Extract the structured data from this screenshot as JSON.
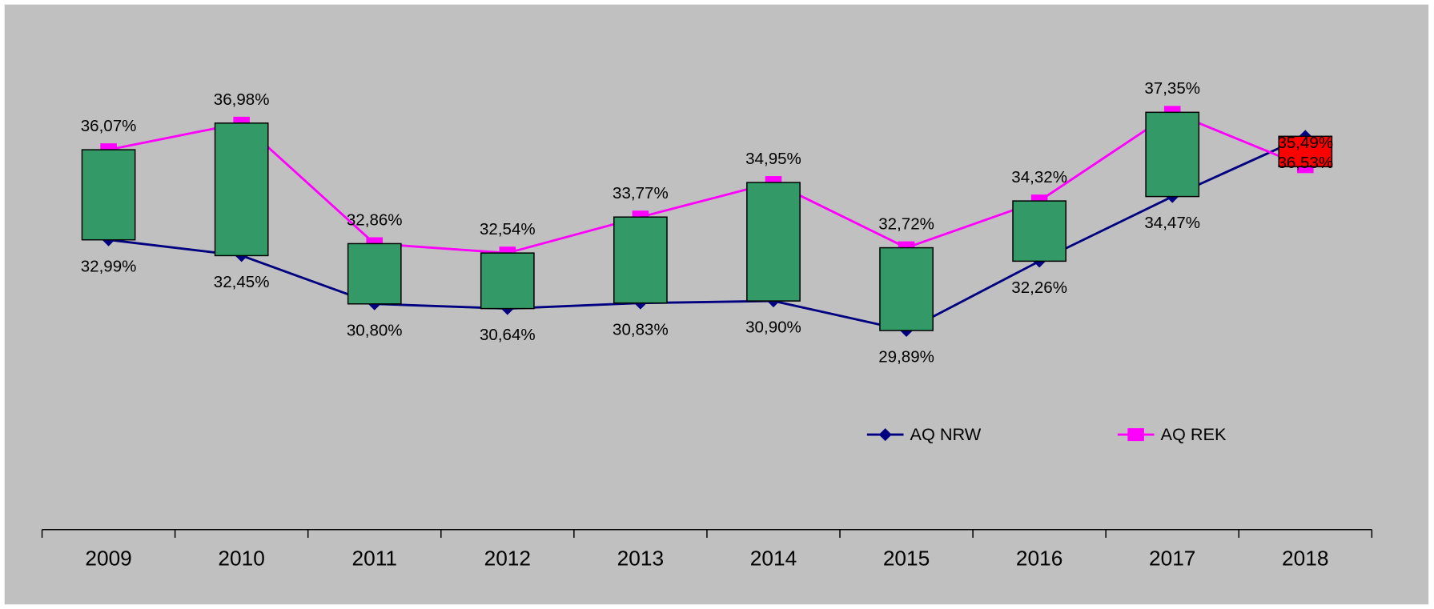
{
  "chart_data": {
    "type": "line",
    "categories": [
      "2009",
      "2010",
      "2011",
      "2012",
      "2013",
      "2014",
      "2015",
      "2016",
      "2017",
      "2018"
    ],
    "series": [
      {
        "name": "AQ NRW",
        "color": "#000080",
        "marker": "diamond",
        "values": [
          32.99,
          32.45,
          30.8,
          30.64,
          30.83,
          30.9,
          29.89,
          32.26,
          34.47,
          36.53
        ],
        "value_labels": [
          "32,99%",
          "32,45%",
          "30,80%",
          "30,64%",
          "30,83%",
          "30,90%",
          "29,89%",
          "32,26%",
          "34,47%",
          "36,53%"
        ]
      },
      {
        "name": "AQ REK",
        "color": "#ff00ff",
        "marker": "square",
        "values": [
          36.07,
          36.98,
          32.86,
          32.54,
          33.77,
          34.95,
          32.72,
          34.32,
          37.35,
          35.49
        ],
        "value_labels": [
          "36,07%",
          "36,98%",
          "32,86%",
          "32,54%",
          "33,77%",
          "34,95%",
          "32,72%",
          "34,32%",
          "37,35%",
          "35,49%"
        ]
      }
    ],
    "up_bar_color": "#339966",
    "down_bar_color": "#ff0000",
    "legend": "inside"
  }
}
